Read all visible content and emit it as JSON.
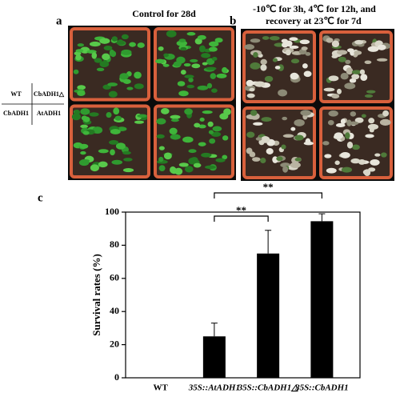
{
  "panel_labels": [
    "a",
    "b",
    "c"
  ],
  "photo_a": {
    "title": "Control for 28d"
  },
  "photo_b": {
    "title_lines": [
      "-10℃ for 3h, 4℃ for 12h, and",
      "recovery at 23℃ for 7d"
    ]
  },
  "tray_key": {
    "rows": [
      [
        "WT",
        "CbADH1△"
      ],
      [
        "CbADH1",
        "AtADH1"
      ]
    ]
  },
  "chart_data": {
    "type": "bar",
    "ylabel": "Survival rates (%)",
    "categories": [
      "WT",
      "35S::AtADH1",
      "35S::CbADH1△",
      "35S::CbADH1"
    ],
    "values": [
      0,
      25,
      75,
      94.5
    ],
    "errors": [
      null,
      8,
      14,
      4.5
    ],
    "color": "#000000",
    "ylim": [
      0,
      100
    ],
    "yticks": [
      0,
      20,
      40,
      60,
      80,
      100
    ],
    "annotations": [
      "**",
      "**"
    ]
  }
}
